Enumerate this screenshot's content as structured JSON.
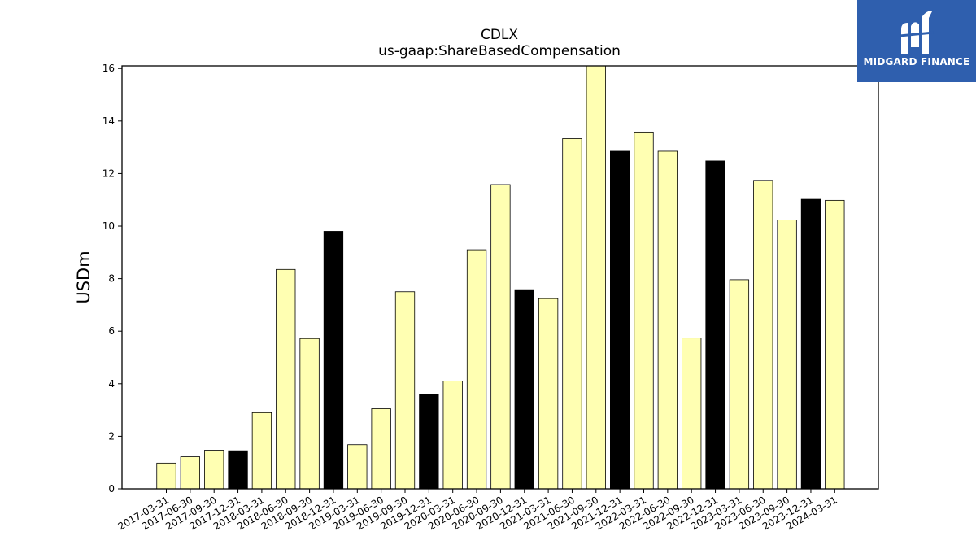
{
  "chart_data": {
    "type": "bar",
    "title": "CDLX",
    "subtitle": "us-gaap:ShareBasedCompensation",
    "xlabel": "",
    "ylabel": "USDm",
    "ylim": [
      0,
      16.1
    ],
    "yticks": [
      0,
      2,
      4,
      6,
      8,
      10,
      12,
      14,
      16
    ],
    "grid": false,
    "categories": [
      "2017-03-31",
      "2017-06-30",
      "2017-09-30",
      "2017-12-31",
      "2018-03-31",
      "2018-06-30",
      "2018-09-30",
      "2018-12-31",
      "2019-03-31",
      "2019-06-30",
      "2019-09-30",
      "2019-12-31",
      "2020-03-31",
      "2020-06-30",
      "2020-09-30",
      "2020-12-31",
      "2021-03-31",
      "2021-06-30",
      "2021-09-30",
      "2021-12-31",
      "2022-03-31",
      "2022-06-30",
      "2022-09-30",
      "2022-12-31",
      "2023-03-31",
      "2023-06-30",
      "2023-09-30",
      "2023-12-31",
      "2024-03-31"
    ],
    "values": [
      0.98,
      1.22,
      1.47,
      1.45,
      2.9,
      8.35,
      5.72,
      9.8,
      1.68,
      3.05,
      7.5,
      3.58,
      4.1,
      9.1,
      11.58,
      7.58,
      7.24,
      13.33,
      16.2,
      12.85,
      13.58,
      12.85,
      5.74,
      12.48,
      7.96,
      11.74,
      10.23,
      11.02,
      10.98
    ],
    "colors": {
      "quarter": "#ffffb2",
      "year_end": "#000000",
      "edge": "#000000"
    }
  },
  "logo": {
    "text": "MIDGARD FINANCE",
    "background": "#2f5fae"
  }
}
